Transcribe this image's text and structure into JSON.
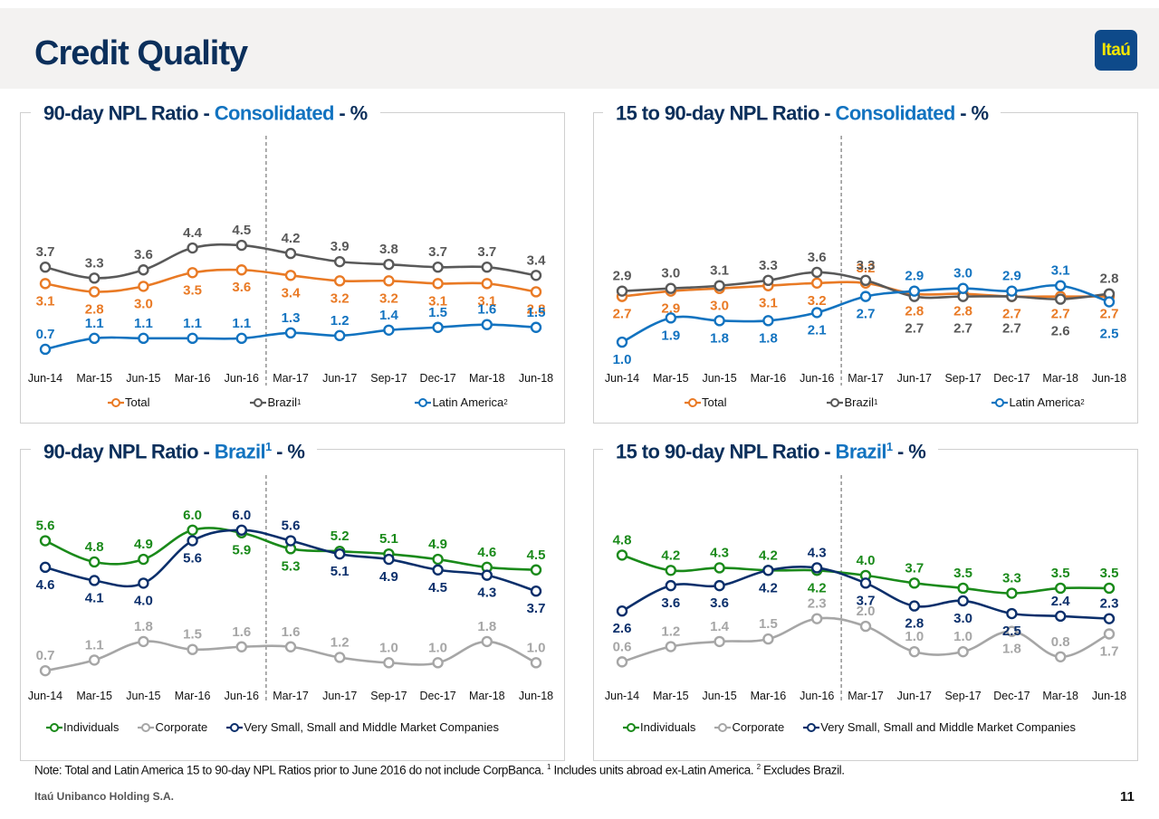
{
  "header": {
    "title": "Credit Quality",
    "logo_text": "Itaú"
  },
  "note": {
    "text1": "Note: Total and Latin America 15 to 90-day NPL Ratios prior to June 2016 do not include CorpBanca. ",
    "sup1": "1",
    "text2": " Includes units abroad ex-Latin America. ",
    "sup2": "2",
    "text3": " Excludes Brazil."
  },
  "footer": {
    "company": "Itaú Unibanco Holding S.A.",
    "page_number": "11"
  },
  "colors": {
    "total": "#e97a25",
    "brazil": "#595959",
    "latam": "#1273c0",
    "individuals": "#1a8a1a",
    "corporate": "#a6a6a6",
    "smb": "#0b2f6b",
    "title_dark": "#0b2f5b",
    "title_accent": "#1273c0"
  },
  "panels": [
    {
      "title_prefix": "90-day NPL Ratio - ",
      "title_accent": "Consolidated",
      "title_sup": "",
      "title_suffix": " - %"
    },
    {
      "title_prefix": "15 to 90-day NPL Ratio - ",
      "title_accent": "Consolidated",
      "title_sup": "",
      "title_suffix": " - %"
    },
    {
      "title_prefix": "90-day NPL Ratio - ",
      "title_accent": "Brazil",
      "title_sup": "1",
      "title_suffix": " - %"
    },
    {
      "title_prefix": "15 to 90-day NPL Ratio - ",
      "title_accent": "Brazil",
      "title_sup": "1",
      "title_suffix": " - %"
    }
  ],
  "legends": {
    "consolidated": [
      {
        "label": "Total",
        "sup": "",
        "key": "total"
      },
      {
        "label": "Brazil",
        "sup": "1",
        "key": "brazil"
      },
      {
        "label": "Latin America",
        "sup": "2",
        "key": "latam"
      }
    ],
    "brazil": [
      {
        "label": "Individuals",
        "sup": "",
        "key": "individuals"
      },
      {
        "label": "Corporate",
        "sup": "",
        "key": "corporate"
      },
      {
        "label": "Very Small, Small and Middle Market Companies",
        "sup": "",
        "key": "smb"
      }
    ]
  },
  "chart_data": [
    {
      "type": "line",
      "title": "90-day NPL Ratio - Consolidated - %",
      "categories": [
        "Jun-14",
        "Mar-15",
        "Jun-15",
        "Mar-16",
        "Jun-16",
        "Mar-17",
        "Jun-17",
        "Sep-17",
        "Dec-17",
        "Mar-18",
        "Jun-18"
      ],
      "ylim": [
        0.5,
        4.6
      ],
      "divider_after": "Jun-16",
      "legend": "bottom",
      "series": [
        {
          "name": "Total",
          "key": "total",
          "values": [
            3.1,
            2.8,
            3.0,
            3.5,
            3.6,
            3.4,
            3.2,
            3.2,
            3.1,
            3.1,
            2.8
          ],
          "label_pos": [
            "below",
            "below",
            "below",
            "below",
            "below",
            "below",
            "below",
            "below",
            "below",
            "below",
            "below"
          ]
        },
        {
          "name": "Brazil¹",
          "key": "brazil",
          "values": [
            3.7,
            3.3,
            3.6,
            4.4,
            4.5,
            4.2,
            3.9,
            3.8,
            3.7,
            3.7,
            3.4
          ],
          "label_pos": [
            "above",
            "above",
            "above",
            "above",
            "above",
            "above",
            "above",
            "above",
            "above",
            "above",
            "above"
          ]
        },
        {
          "name": "Latin America²",
          "key": "latam",
          "values": [
            0.7,
            1.1,
            1.1,
            1.1,
            1.1,
            1.3,
            1.2,
            1.4,
            1.5,
            1.6,
            1.5
          ],
          "label_pos": [
            "above",
            "above",
            "above",
            "above",
            "above",
            "above",
            "above",
            "above",
            "above",
            "above",
            "above"
          ]
        }
      ]
    },
    {
      "type": "line",
      "title": "15 to 90-day NPL Ratio - Consolidated - %",
      "categories": [
        "Jun-14",
        "Mar-15",
        "Jun-15",
        "Mar-16",
        "Jun-16",
        "Mar-17",
        "Jun-17",
        "Sep-17",
        "Dec-17",
        "Mar-18",
        "Jun-18"
      ],
      "ylim": [
        0.8,
        3.9
      ],
      "divider_after": "Jun-16",
      "legend": "bottom",
      "series": [
        {
          "name": "Total",
          "key": "total",
          "values": [
            2.7,
            2.9,
            3.0,
            3.1,
            3.2,
            3.2,
            2.8,
            2.8,
            2.7,
            2.7,
            2.7
          ],
          "label_pos": [
            "below",
            "below",
            "below",
            "below",
            "below",
            "above",
            "below",
            "below",
            "below",
            "below",
            "below"
          ]
        },
        {
          "name": "Brazil¹",
          "key": "brazil",
          "values": [
            2.9,
            3.0,
            3.1,
            3.3,
            3.6,
            3.3,
            2.7,
            2.7,
            2.7,
            2.6,
            2.8
          ],
          "label_pos": [
            "above",
            "above",
            "above",
            "above",
            "above",
            "above",
            "below2",
            "below2",
            "below2",
            "below2",
            "above"
          ]
        },
        {
          "name": "Latin America²",
          "key": "latam",
          "values": [
            1.0,
            1.9,
            1.8,
            1.8,
            2.1,
            2.7,
            2.9,
            3.0,
            2.9,
            3.1,
            2.5
          ],
          "label_pos": [
            "below",
            "below",
            "below",
            "below",
            "below",
            "below",
            "above",
            "above",
            "above",
            "above",
            "below2"
          ]
        }
      ]
    },
    {
      "type": "line",
      "title": "90-day NPL Ratio - Brazil¹ - %",
      "categories": [
        "Jun-14",
        "Mar-15",
        "Jun-15",
        "Mar-16",
        "Jun-16",
        "Mar-17",
        "Jun-17",
        "Sep-17",
        "Dec-17",
        "Mar-18",
        "Jun-18"
      ],
      "ylim": [
        0.5,
        6.3
      ],
      "divider_after": "Jun-16",
      "legend": "bottom",
      "series": [
        {
          "name": "Individuals",
          "key": "individuals",
          "values": [
            5.6,
            4.8,
            4.9,
            6.0,
            5.9,
            5.3,
            5.2,
            5.1,
            4.9,
            4.6,
            4.5
          ],
          "label_pos": [
            "above",
            "above",
            "above",
            "above",
            "below",
            "below",
            "above",
            "above",
            "above",
            "above",
            "above"
          ]
        },
        {
          "name": "Corporate",
          "key": "corporate",
          "values": [
            0.7,
            1.1,
            1.8,
            1.5,
            1.6,
            1.6,
            1.2,
            1.0,
            1.0,
            1.8,
            1.0
          ],
          "label_pos": [
            "above",
            "above",
            "above",
            "above",
            "above",
            "above",
            "above",
            "above",
            "above",
            "above",
            "above"
          ]
        },
        {
          "name": "Very Small, Small and Middle Market Companies",
          "key": "smb",
          "values": [
            4.6,
            4.1,
            4.0,
            5.6,
            6.0,
            5.6,
            5.1,
            4.9,
            4.5,
            4.3,
            3.7
          ],
          "label_pos": [
            "below",
            "below",
            "below",
            "below",
            "above",
            "above",
            "below",
            "below",
            "below",
            "below",
            "below"
          ]
        }
      ]
    },
    {
      "type": "line",
      "title": "15 to 90-day NPL Ratio - Brazil¹ - %",
      "categories": [
        "Jun-14",
        "Mar-15",
        "Jun-15",
        "Mar-16",
        "Jun-16",
        "Mar-17",
        "Jun-17",
        "Sep-17",
        "Dec-17",
        "Mar-18",
        "Jun-18"
      ],
      "ylim": [
        0.4,
        5.1
      ],
      "divider_after": "Jun-16",
      "legend": "bottom",
      "series": [
        {
          "name": "Individuals",
          "key": "individuals",
          "values": [
            4.8,
            4.2,
            4.3,
            4.2,
            4.2,
            4.0,
            3.7,
            3.5,
            3.3,
            3.5,
            3.5
          ],
          "label_pos": [
            "above",
            "above",
            "above",
            "above",
            "below",
            "above",
            "above",
            "above",
            "above",
            "above",
            "above"
          ]
        },
        {
          "name": "Corporate",
          "key": "corporate",
          "values": [
            0.6,
            1.2,
            1.4,
            1.5,
            2.3,
            2.0,
            1.0,
            1.0,
            1.8,
            0.8,
            1.7
          ],
          "label_pos": [
            "above",
            "above",
            "above",
            "above",
            "above",
            "above",
            "above",
            "above",
            "below",
            "above",
            "below"
          ]
        },
        {
          "name": "Very Small, Small and Middle Market Companies",
          "key": "smb",
          "values": [
            2.6,
            3.6,
            3.6,
            4.2,
            4.3,
            3.7,
            2.8,
            3.0,
            2.5,
            2.4,
            2.3
          ],
          "label_pos": [
            "below",
            "below",
            "below",
            "below",
            "above",
            "below",
            "below",
            "below",
            "below",
            "above",
            "above"
          ]
        }
      ]
    }
  ]
}
